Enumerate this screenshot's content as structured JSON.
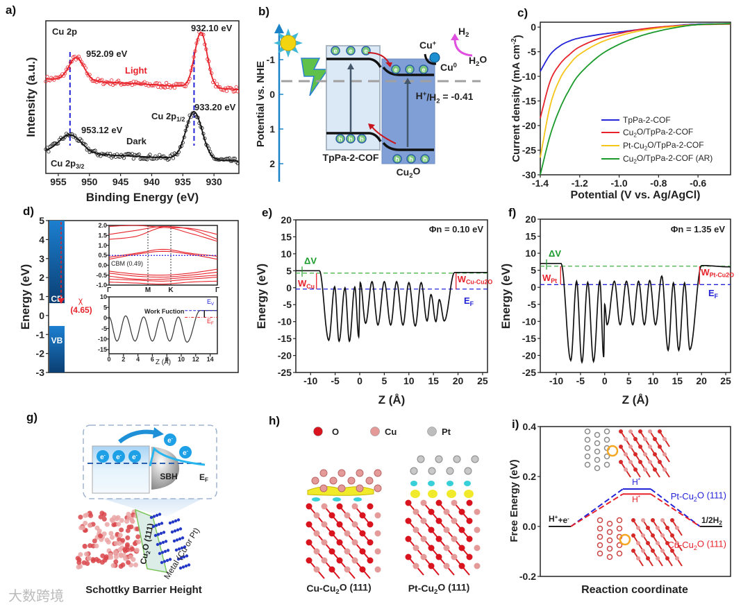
{
  "panel_labels": {
    "a": "a)",
    "b": "b)",
    "c": "c)",
    "d": "d)",
    "e": "e)",
    "f": "f)",
    "g": "g)",
    "h": "h)",
    "i": "i)"
  },
  "watermark": "大数跨境",
  "colors": {
    "red": "#e8222a",
    "blue": "#2323d8",
    "green": "#1a9a2a",
    "yellow": "#f5c518",
    "band_blue": "#1b6fb8",
    "pink": "#e050e0",
    "cyan": "#1ea0e6"
  },
  "chart_data": [
    {
      "id": "a",
      "type": "scatter",
      "xlabel": "Binding Energy (eV)",
      "ylabel": "Intensity (a.u.)",
      "xlim": [
        957,
        926
      ],
      "ylim": [
        0,
        100
      ],
      "xticks": [
        955,
        950,
        945,
        940,
        935,
        930
      ],
      "series": [
        {
          "name": "Light",
          "color": "#e8222a",
          "baseline": [
            62,
            55
          ],
          "peaks": [
            {
              "center": 952.09,
              "height": 15,
              "width": 1.2
            },
            {
              "center": 932.1,
              "height": 36,
              "width": 1.0
            }
          ]
        },
        {
          "name": "Dark",
          "color": "#111111",
          "baseline": [
            14,
            8
          ],
          "peaks": [
            {
              "center": 953.12,
              "height": 12,
              "width": 1.8
            },
            {
              "center": 933.2,
              "height": 31,
              "width": 1.3
            }
          ]
        }
      ],
      "reference_lines": [
        953.12,
        933.2
      ],
      "annotations": {
        "region": "Cu 2p",
        "light_p1": "932.10 eV",
        "light_p3": "952.09 eV",
        "light": "Light",
        "dark_p1": "933.20 eV",
        "p12": "Cu 2p_{1/2}",
        "dark_p3": "953.12 eV",
        "dark": "Dark",
        "p32": "Cu 2p_{3/2}"
      }
    },
    {
      "id": "b",
      "type": "diagram",
      "ylabel": "Potential vs. NHE",
      "yticks": [
        -1,
        0,
        1,
        2
      ],
      "ylim": [
        -2,
        2.5
      ],
      "reference": {
        "label": "H^{+}/H_{2} = -0.41",
        "value": -0.41
      },
      "materials": [
        "TpPa-2-COF",
        "Cu_{2}O"
      ],
      "electron": "e",
      "hole": "h",
      "species": {
        "cu_plus": "Cu^{+}",
        "cu_zero": "Cu^{0}",
        "h2": "H_{2}",
        "h2o": "H_{2}O"
      }
    },
    {
      "id": "c",
      "type": "line",
      "xlabel": "Potential (V vs. Ag/AgCl)",
      "ylabel": "Current density (mA cm^{-2})",
      "xlim": [
        -1.4,
        -0.435
      ],
      "ylim": [
        -30,
        1
      ],
      "xticks": [
        -1.4,
        -1.2,
        -1.0,
        -0.8,
        -0.6
      ],
      "xtick_labels": [
        "-1.4",
        "-1.2",
        "-1.0",
        "-0.8",
        "-0.6"
      ],
      "yticks": [
        0,
        -5,
        -10,
        -15,
        -20,
        -25,
        -30
      ],
      "legend_position": "bottom-right",
      "series": [
        {
          "name": "TpPa-2-COF",
          "color": "#2323d8",
          "points": [
            [
              -1.4,
              -9
            ],
            [
              -1.35,
              -5.6
            ],
            [
              -1.3,
              -3.8
            ],
            [
              -1.25,
              -2.8
            ],
            [
              -1.2,
              -2.2
            ],
            [
              -1.1,
              -1.5
            ],
            [
              -1.0,
              -1.0
            ],
            [
              -0.9,
              -0.5
            ],
            [
              -0.8,
              -0.1
            ],
            [
              -0.7,
              0.35
            ],
            [
              -0.6,
              0.6
            ],
            [
              -0.435,
              0.7
            ]
          ]
        },
        {
          "name": "Cu_{2}O/TpPa-2-COF",
          "color": "#e8222a",
          "points": [
            [
              -1.4,
              -18.5
            ],
            [
              -1.35,
              -11
            ],
            [
              -1.3,
              -7.5
            ],
            [
              -1.25,
              -5.5
            ],
            [
              -1.2,
              -4
            ],
            [
              -1.1,
              -2.3
            ],
            [
              -1.0,
              -1.3
            ],
            [
              -0.9,
              -0.5
            ],
            [
              -0.8,
              0
            ],
            [
              -0.7,
              0.3
            ],
            [
              -0.6,
              0.5
            ],
            [
              -0.435,
              0.6
            ]
          ]
        },
        {
          "name": "Pt-Cu_{2}O/TpPa-2-COF",
          "color": "#f5c518",
          "points": [
            [
              -1.4,
              -26.5
            ],
            [
              -1.35,
              -16
            ],
            [
              -1.3,
              -10.5
            ],
            [
              -1.25,
              -7.5
            ],
            [
              -1.2,
              -5.5
            ],
            [
              -1.1,
              -3.2
            ],
            [
              -1.0,
              -1.8
            ],
            [
              -0.9,
              -0.8
            ],
            [
              -0.8,
              -0.2
            ],
            [
              -0.7,
              0.2
            ],
            [
              -0.6,
              0.5
            ],
            [
              -0.435,
              0.7
            ]
          ]
        },
        {
          "name": "Cu_{2}O/TpPa-2-COF (AR)",
          "color": "#1a9a2a",
          "points": [
            [
              -1.4,
              -30
            ],
            [
              -1.35,
              -22
            ],
            [
              -1.3,
              -16.5
            ],
            [
              -1.25,
              -12.5
            ],
            [
              -1.2,
              -9.5
            ],
            [
              -1.1,
              -5.8
            ],
            [
              -1.0,
              -3.5
            ],
            [
              -0.9,
              -1.9
            ],
            [
              -0.8,
              -0.8
            ],
            [
              -0.7,
              0
            ],
            [
              -0.6,
              0.5
            ],
            [
              -0.435,
              0.7
            ]
          ]
        }
      ]
    },
    {
      "id": "d",
      "type": "diagram",
      "ylabel": "Energy (eV)",
      "ylim": [
        -3,
        5
      ],
      "yticks": [
        5,
        4,
        3,
        2,
        1,
        0,
        -1,
        -2,
        -3
      ],
      "cb": {
        "label": "CB",
        "bottom": 0.65
      },
      "vb": {
        "label": "VB",
        "top": -0.55
      },
      "affinity_symbol": "χ",
      "affinity_value": "(4.65)",
      "band_inset": {
        "ylim": [
          -1,
          2
        ],
        "yticks": [
          2.0,
          1.5,
          1.0,
          0.5,
          0.0,
          -0.5,
          -1.0
        ],
        "ytick_labels": [
          "2.0",
          "1.5",
          "1.0",
          "0.5",
          "0.0",
          "-0.5",
          "-1.0"
        ],
        "kpoints": [
          "Γ",
          "M",
          "K",
          "Γ"
        ],
        "cbm_label": "CBM (0.49)",
        "cbm": 0.49
      },
      "potential_inset": {
        "xlim": [
          0,
          15
        ],
        "ylim": [
          -17,
          10
        ],
        "xticks": [
          0,
          2,
          4,
          6,
          8,
          10,
          12,
          14
        ],
        "yticks": [
          10,
          5,
          0,
          -5,
          -10,
          -15
        ],
        "xlabel": "Z (Å)",
        "label": "Work Fuction",
        "ev_label": "E_{V}",
        "ef_label": "E_{F}",
        "ev": 3.5,
        "ef": 0.3,
        "extrema": [
          [
            0,
            0.5
          ],
          [
            1.1,
            -11
          ],
          [
            2.3,
            1
          ],
          [
            3.6,
            -11
          ],
          [
            4.8,
            0.5
          ],
          [
            6,
            -11
          ],
          [
            7.2,
            0.3
          ],
          [
            8.4,
            -11
          ],
          [
            9.6,
            0.5
          ],
          [
            10.8,
            -11.5
          ],
          [
            12.6,
            3.5
          ],
          [
            15,
            3.5
          ]
        ]
      }
    },
    {
      "id": "e",
      "type": "line",
      "xlabel": "Z (Å)",
      "ylabel": "Energy (eV)",
      "xlim": [
        -13,
        26
      ],
      "ylim": [
        -25,
        20
      ],
      "xticks": [
        -10,
        -5,
        0,
        5,
        10,
        15,
        20,
        25
      ],
      "yticks": [
        20,
        15,
        10,
        5,
        0,
        -5,
        -10,
        -15,
        -20,
        -25
      ],
      "vacuum_level": 4.3,
      "fermi_level": -0.4,
      "annotations": {
        "phi": "Φn = 0.10 eV",
        "dv": "ΔV",
        "w_left": "W_{Cu}",
        "w_right": "W_{Cu-Cu2O}",
        "ef": "E_{F}"
      },
      "extrema": [
        [
          -13,
          5
        ],
        [
          -8.2,
          5
        ],
        [
          -6.3,
          -15.5
        ],
        [
          -5.1,
          0.3
        ],
        [
          -4.2,
          -15.8
        ],
        [
          -3,
          0
        ],
        [
          -2.1,
          -15.8
        ],
        [
          -1,
          0.2
        ],
        [
          -0.2,
          -14.5
        ],
        [
          0.1,
          1.5
        ],
        [
          1.2,
          -10.5
        ],
        [
          2.5,
          1.8
        ],
        [
          3.7,
          -11
        ],
        [
          5,
          1.8
        ],
        [
          6.3,
          -11
        ],
        [
          7.5,
          1.8
        ],
        [
          8.8,
          -11
        ],
        [
          10,
          1.5
        ],
        [
          11.3,
          -11.3
        ],
        [
          12.5,
          1.5
        ],
        [
          13.7,
          -9.8
        ],
        [
          14.5,
          -2
        ],
        [
          15.5,
          -10
        ],
        [
          16.2,
          -3.5
        ],
        [
          17.2,
          -9.8
        ],
        [
          19.3,
          4.5
        ],
        [
          26,
          4.5
        ]
      ]
    },
    {
      "id": "f",
      "type": "line",
      "xlabel": "Z (Å)",
      "ylabel": "Energy (eV)",
      "xlim": [
        -13.3,
        26
      ],
      "ylim": [
        -25,
        20
      ],
      "xticks": [
        -10,
        -5,
        0,
        5,
        10,
        15,
        20,
        25
      ],
      "yticks": [
        20,
        15,
        10,
        5,
        0,
        -5,
        -10,
        -15,
        -20,
        -25
      ],
      "vacuum_level": 6.2,
      "fermi_level": 0.8,
      "annotations": {
        "phi": "Φn = 1.35 eV",
        "dv": "ΔV",
        "w_left": "W_{Pt}",
        "w_right": "W_{Pt-Cu2O}",
        "ef": "E_{F}"
      },
      "extrema": [
        [
          -13.3,
          7
        ],
        [
          -9,
          7
        ],
        [
          -7,
          -21.5
        ],
        [
          -5.8,
          1.8
        ],
        [
          -4.7,
          -22
        ],
        [
          -3.5,
          1.5
        ],
        [
          -2.3,
          -21.8
        ],
        [
          -1,
          1.8
        ],
        [
          -0.2,
          -20.5
        ],
        [
          0,
          -5
        ],
        [
          0.5,
          -11
        ],
        [
          2,
          1.8
        ],
        [
          3.2,
          -11
        ],
        [
          4.5,
          1.8
        ],
        [
          5.8,
          -11
        ],
        [
          7,
          1.8
        ],
        [
          8.2,
          -11
        ],
        [
          9.3,
          2
        ],
        [
          10.5,
          -11
        ],
        [
          11.8,
          3.3
        ],
        [
          13.1,
          -18.5
        ],
        [
          14.2,
          1.3
        ],
        [
          15.3,
          -18.5
        ],
        [
          16.5,
          1.3
        ],
        [
          17.6,
          -18.3
        ],
        [
          20,
          6.4
        ],
        [
          26,
          6
        ]
      ]
    },
    {
      "id": "g",
      "type": "diagram",
      "electron": "e^{-}",
      "sbh": "SBH",
      "ef": "E_{F}",
      "slab": "Cu_{2}O (111)",
      "metal": "Metal (Cu or Pt)",
      "caption": "Schottky Barrier Height"
    },
    {
      "id": "h",
      "type": "diagram",
      "legend": [
        {
          "label": "O",
          "color": "#d9141e"
        },
        {
          "label": "Cu",
          "color": "#e59a9a"
        },
        {
          "label": "Pt",
          "color": "#bdbdbd"
        }
      ],
      "structures": [
        "Cu-Cu_{2}O (111)",
        "Pt-Cu_{2}O (111)"
      ]
    },
    {
      "id": "i",
      "type": "line",
      "xlabel": "Reaction coordinate",
      "ylabel": "Free Energy (eV)",
      "ylim": [
        -0.2,
        0.4
      ],
      "yticks": [
        0.4,
        0.2,
        0.0,
        -0.2
      ],
      "ytick_labels": [
        "0.4",
        "0.2",
        "0.0",
        "-0.2"
      ],
      "states": [
        "H^{+}+e^{-}",
        "H^{*}",
        "1/2H_{2}"
      ],
      "series": [
        {
          "name": "Pt-Cu_{2}O (111)",
          "color": "#2323d8",
          "values": [
            0,
            0.15,
            0
          ]
        },
        {
          "name": "Cu-Cu_{2}O (111)",
          "color": "#e8222a",
          "values": [
            0,
            0.13,
            0
          ]
        }
      ]
    }
  ]
}
